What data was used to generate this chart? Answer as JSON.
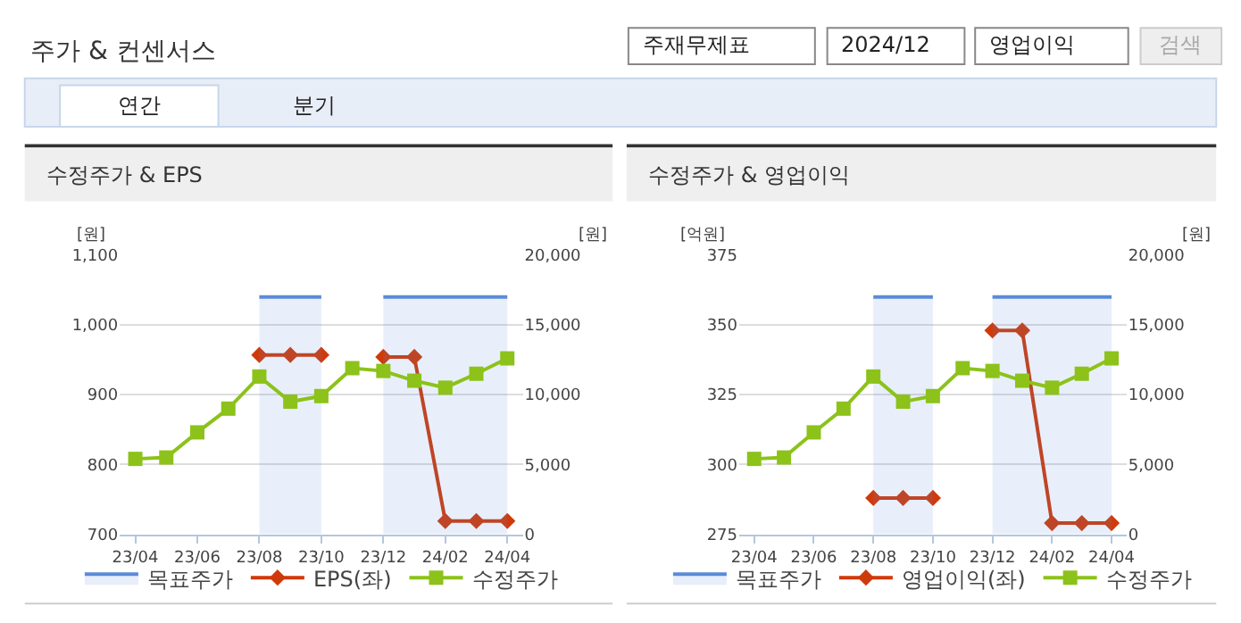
{
  "chart_data": [
    {
      "type": "other",
      "title": "주가 & 컨센서스",
      "annotations": [
        "주재무제표",
        "2024/12",
        "영업이익",
        "검색",
        "연간",
        "분기"
      ]
    },
    {
      "type": "line",
      "title": "수정주가 & EPS",
      "ylabel": "[원]",
      "y2label": "[원]",
      "categories": [
        "23/04",
        null,
        "23/06",
        null,
        "23/08",
        null,
        "23/10",
        null,
        "23/12",
        null,
        "24/02",
        null,
        "24/04"
      ],
      "ylim": [
        700,
        1100
      ],
      "yticks": [
        700,
        800,
        900,
        {
          "value": 1000,
          "label": "1,000"
        },
        {
          "value": 1100,
          "label": "1,100"
        }
      ],
      "y2lim": [
        0,
        20000
      ],
      "y2ticks": [
        0,
        {
          "value": 5000,
          "label": "5,000"
        },
        {
          "value": 10000,
          "label": "10,000"
        },
        {
          "value": 15000,
          "label": "15,000"
        },
        {
          "value": 20000,
          "label": "20,000"
        }
      ],
      "grid": "y",
      "legend": "bottom",
      "line_style": "solid",
      "series": [
        {
          "name": "목표주가",
          "type": "area",
          "axis": "y2",
          "color": "#5b8bd9",
          "marker": "none",
          "values": [
            null,
            null,
            null,
            null,
            17000,
            17000,
            17000,
            null,
            17000,
            17000,
            17000,
            17000,
            17000
          ]
        },
        {
          "name": "EPS(좌)",
          "type": "line",
          "color": "#d03a0a",
          "marker": "diamond",
          "values": [
            null,
            null,
            null,
            null,
            957,
            957,
            957,
            null,
            954,
            954,
            719,
            719,
            719
          ]
        },
        {
          "name": "수정주가",
          "type": "line",
          "axis": "y2",
          "color": "#8cc21a",
          "marker": "square",
          "values": [
            5400,
            5500,
            7300,
            9000,
            11300,
            9500,
            9900,
            11900,
            11700,
            11000,
            10500,
            11500,
            12600
          ]
        }
      ]
    },
    {
      "type": "line",
      "title": "수정주가 & 영업이익",
      "ylabel": "[억원]",
      "y2label": "[원]",
      "categories": [
        "23/04",
        null,
        "23/06",
        null,
        "23/08",
        null,
        "23/10",
        null,
        "23/12",
        null,
        "24/02",
        null,
        "24/04"
      ],
      "ylim": [
        275,
        375
      ],
      "yticks": [
        275,
        300,
        325,
        350,
        375
      ],
      "y2lim": [
        0,
        20000
      ],
      "y2ticks": [
        0,
        {
          "value": 5000,
          "label": "5,000"
        },
        {
          "value": 10000,
          "label": "10,000"
        },
        {
          "value": 15000,
          "label": "15,000"
        },
        {
          "value": 20000,
          "label": "20,000"
        }
      ],
      "grid": "y",
      "legend": "bottom",
      "line_style": "solid",
      "series": [
        {
          "name": "목표주가",
          "type": "area",
          "axis": "y2",
          "color": "#5b8bd9",
          "marker": "none",
          "values": [
            null,
            null,
            null,
            null,
            17000,
            17000,
            17000,
            null,
            17000,
            17000,
            17000,
            17000,
            17000
          ]
        },
        {
          "name": "영업이익(좌)",
          "type": "line",
          "color": "#d03a0a",
          "marker": "diamond",
          "values": [
            null,
            null,
            null,
            null,
            288,
            288,
            288,
            null,
            348,
            348,
            279,
            279,
            279
          ]
        },
        {
          "name": "수정주가",
          "type": "line",
          "axis": "y2",
          "color": "#8cc21a",
          "marker": "square",
          "values": [
            5400,
            5500,
            7300,
            9000,
            11300,
            9500,
            9900,
            11900,
            11700,
            11000,
            10500,
            11500,
            12600
          ]
        }
      ]
    }
  ]
}
